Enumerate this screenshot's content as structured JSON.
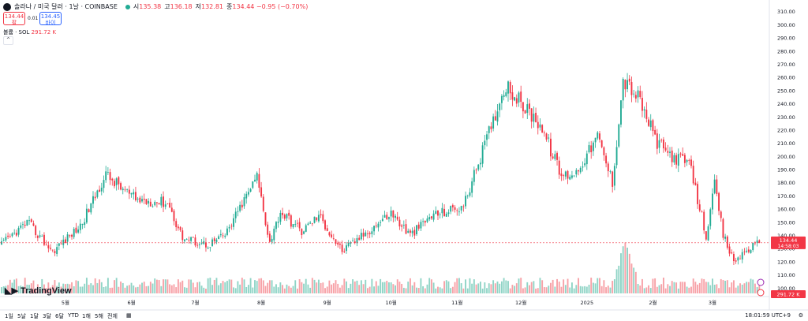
{
  "header": {
    "symbol": "솔라나 / 미국 달러 · 1날 · COINBASE",
    "ohlc": [
      {
        "k": "시",
        "v": "135.38"
      },
      {
        "k": "고",
        "v": "136.18"
      },
      {
        "k": "저",
        "v": "132.81"
      },
      {
        "k": "종",
        "v": "134.44 −0.95 (−0.70%)"
      }
    ]
  },
  "trade": {
    "sell_price": "134.44",
    "sell_label": "팔",
    "spread": "0.01",
    "buy_price": "134.45",
    "buy_label": "바이"
  },
  "volume_legend": {
    "label": "볼륨 · SOL",
    "value": "291.72 K"
  },
  "price_tag": {
    "price": "134.44",
    "countdown": "14:58:03"
  },
  "volume_tag": "291.72 K",
  "watermark": "TradingView",
  "time_axis_labels": [
    "5월",
    "6월",
    "7월",
    "8월",
    "9월",
    "10월",
    "11월",
    "12월",
    "2025",
    "2월",
    "3월"
  ],
  "range_buttons": [
    "1일",
    "5날",
    "1달",
    "3달",
    "6달",
    "YTD",
    "1해",
    "5해",
    "전체"
  ],
  "clock": "18:01:59 UTC+9",
  "colors": {
    "up": "#22ab94",
    "down": "#f23645",
    "up_vol": "#8fd4c6",
    "down_vol": "#f7a1a7"
  },
  "chart_data": {
    "type": "candlestick",
    "title": "",
    "price_axis": {
      "ticks": [
        100,
        110,
        120,
        130,
        140,
        150,
        160,
        170,
        180,
        190,
        200,
        210,
        220,
        230,
        240,
        250,
        260,
        270,
        280,
        290,
        300,
        310
      ],
      "ylim": [
        96,
        314
      ]
    },
    "grid": false,
    "series": [
      {
        "name": "Price",
        "unit": "USD",
        "anchors": [
          {
            "x": "2024-04-01",
            "y": 133
          },
          {
            "x": "2024-04-13",
            "y": 150
          },
          {
            "x": "2024-04-25",
            "y": 128
          },
          {
            "x": "2024-05-08",
            "y": 147
          },
          {
            "x": "2024-05-20",
            "y": 186
          },
          {
            "x": "2024-06-03",
            "y": 167
          },
          {
            "x": "2024-06-18",
            "y": 165
          },
          {
            "x": "2024-06-25",
            "y": 138
          },
          {
            "x": "2024-07-07",
            "y": 133
          },
          {
            "x": "2024-07-15",
            "y": 140
          },
          {
            "x": "2024-07-30",
            "y": 185
          },
          {
            "x": "2024-08-05",
            "y": 135
          },
          {
            "x": "2024-08-10",
            "y": 158
          },
          {
            "x": "2024-08-20",
            "y": 143
          },
          {
            "x": "2024-08-28",
            "y": 155
          },
          {
            "x": "2024-09-08",
            "y": 128
          },
          {
            "x": "2024-09-20",
            "y": 143
          },
          {
            "x": "2024-10-01",
            "y": 157
          },
          {
            "x": "2024-10-10",
            "y": 140
          },
          {
            "x": "2024-10-20",
            "y": 155
          },
          {
            "x": "2024-11-04",
            "y": 162
          },
          {
            "x": "2024-11-12",
            "y": 200
          },
          {
            "x": "2024-11-24",
            "y": 255
          },
          {
            "x": "2024-12-02",
            "y": 238
          },
          {
            "x": "2024-12-10",
            "y": 225
          },
          {
            "x": "2024-12-20",
            "y": 185
          },
          {
            "x": "2024-12-27",
            "y": 188
          },
          {
            "x": "2025-01-06",
            "y": 215
          },
          {
            "x": "2025-01-13",
            "y": 180
          },
          {
            "x": "2025-01-18",
            "y": 258
          },
          {
            "x": "2025-01-25",
            "y": 245
          },
          {
            "x": "2025-02-03",
            "y": 210
          },
          {
            "x": "2025-02-10",
            "y": 200
          },
          {
            "x": "2025-02-18",
            "y": 195
          },
          {
            "x": "2025-02-26",
            "y": 140
          },
          {
            "x": "2025-03-02",
            "y": 178
          },
          {
            "x": "2025-03-06",
            "y": 140
          },
          {
            "x": "2025-03-11",
            "y": 120
          },
          {
            "x": "2025-03-18",
            "y": 130
          },
          {
            "x": "2025-03-23",
            "y": 134.44
          }
        ]
      },
      {
        "name": "볼륨 · SOL",
        "unit": "SOL",
        "peak": "2025-01-19"
      }
    ]
  }
}
